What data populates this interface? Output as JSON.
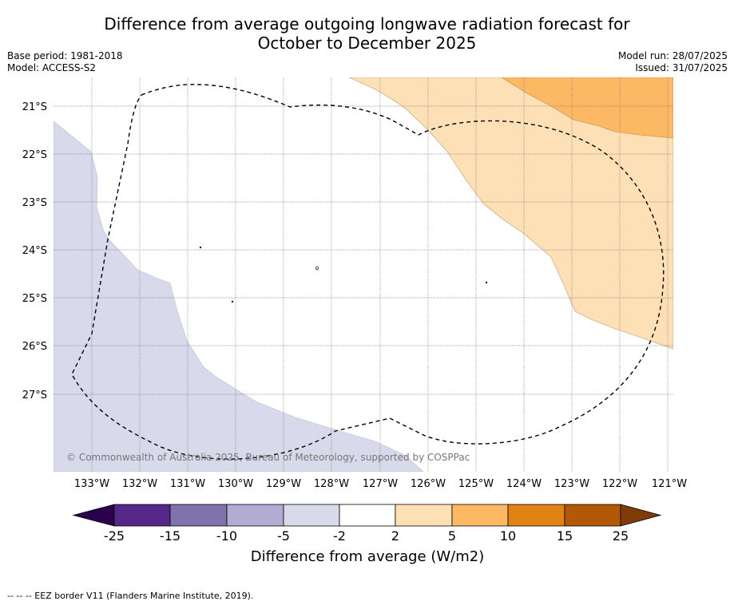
{
  "title_line1": "Difference from average outgoing longwave radiation forecast for",
  "title_line2": "October to December 2025",
  "base_period": "Base period: 1981-2018",
  "model": "Model: ACCESS-S2",
  "model_run": "Model run: 28/07/2025",
  "issued": "Issued: 31/07/2025",
  "copyright": "© Commonwealth of Australia 2025, Bureau of Meteorology, supported by COSPPac",
  "footer_legend": "--  --  -- EEZ border V11 (Flanders Marine Institute, 2019).",
  "map": {
    "longitude_labels": [
      "133°W",
      "132°W",
      "131°W",
      "130°W",
      "129°W",
      "128°W",
      "127°W",
      "126°W",
      "125°W",
      "124°W",
      "123°W",
      "122°W",
      "121°W"
    ],
    "latitude_labels": [
      "21°S",
      "22°S",
      "23°S",
      "24°S",
      "25°S",
      "26°S",
      "27°S"
    ]
  },
  "colorbar": {
    "label": "Difference from average (W/m2)",
    "ticks": [
      "-25",
      "-15",
      "-10",
      "-5",
      "-2",
      "2",
      "5",
      "10",
      "15",
      "25"
    ],
    "bins": [
      {
        "range": "< -25",
        "color": "#2d004b"
      },
      {
        "range": "-25 to -15",
        "color": "#542788"
      },
      {
        "range": "-15 to -10",
        "color": "#8073ac"
      },
      {
        "range": "-10 to -5",
        "color": "#b2abd2"
      },
      {
        "range": "-5 to -2",
        "color": "#d8daeb"
      },
      {
        "range": "-2 to 2",
        "color": "#ffffff"
      },
      {
        "range": "2 to 5",
        "color": "#fee0b6"
      },
      {
        "range": "5 to 10",
        "color": "#fdb863"
      },
      {
        "range": "10 to 15",
        "color": "#e08214"
      },
      {
        "range": "15 to 25",
        "color": "#b35806"
      },
      {
        "range": "> 25",
        "color": "#7f3b08"
      }
    ]
  }
}
